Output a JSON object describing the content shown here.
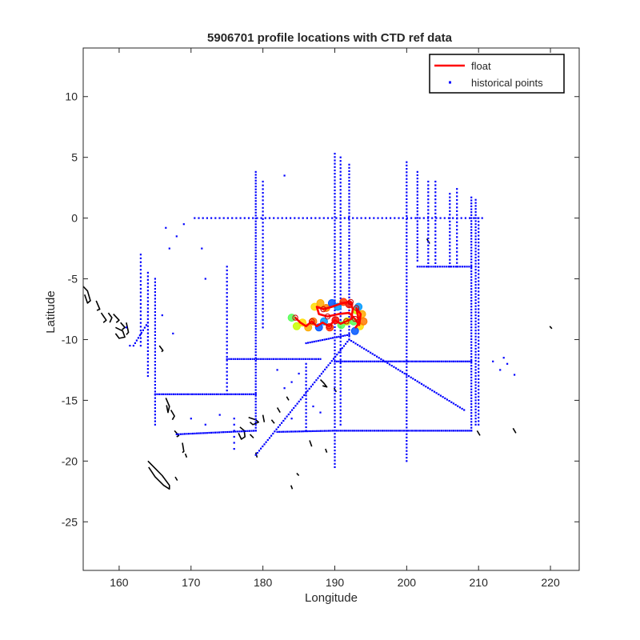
{
  "chart_data": {
    "type": "scatter",
    "title": "5906701 profile locations with CTD ref data",
    "xlabel": "Longitude",
    "ylabel": "Latitude",
    "xlim": [
      155,
      224
    ],
    "ylim": [
      -29,
      14
    ],
    "xticks": [
      160,
      170,
      180,
      190,
      200,
      210,
      220
    ],
    "yticks": [
      10,
      5,
      0,
      -5,
      -10,
      -15,
      -20,
      -25
    ],
    "grid": false,
    "legend": {
      "position": "top-right",
      "entries": [
        {
          "label": "float",
          "color": "#ff0000",
          "marker": "line"
        },
        {
          "label": "historical points",
          "color": "#0000ff",
          "marker": "dot"
        }
      ]
    },
    "series": [
      {
        "name": "float",
        "color": "#ff0000",
        "points": [
          [
            184.5,
            -8.2
          ],
          [
            185.2,
            -8.6
          ],
          [
            186.0,
            -8.9
          ],
          [
            186.8,
            -8.5
          ],
          [
            187.5,
            -8.9
          ],
          [
            188.3,
            -8.6
          ],
          [
            189.2,
            -8.9
          ],
          [
            190.0,
            -8.4
          ],
          [
            190.8,
            -8.7
          ],
          [
            191.6,
            -8.5
          ],
          [
            192.3,
            -8.3
          ],
          [
            192.5,
            -7.5
          ],
          [
            192.2,
            -6.9
          ],
          [
            191.0,
            -7.0
          ],
          [
            189.6,
            -7.3
          ],
          [
            188.4,
            -7.5
          ],
          [
            187.5,
            -7.3
          ],
          [
            187.8,
            -7.9
          ],
          [
            189.0,
            -8.1
          ],
          [
            190.5,
            -7.9
          ],
          [
            192.0,
            -7.8
          ],
          [
            192.8,
            -8.3
          ],
          [
            193.4,
            -8.8
          ],
          [
            193.6,
            -7.9
          ],
          [
            193.0,
            -7.4
          ],
          [
            193.4,
            -8.6
          ],
          [
            192.9,
            -9.0
          ]
        ]
      },
      {
        "name": "historical points",
        "color": "#0000ff",
        "segments": [
          {
            "from": [
              170.5,
              0
            ],
            "to": [
              210.5,
              0
            ],
            "n": 70
          },
          {
            "from": [
              179,
              3.8
            ],
            "to": [
              179,
              -17.5
            ],
            "n": 90
          },
          {
            "from": [
              180,
              3
            ],
            "to": [
              180,
              -9
            ],
            "n": 40
          },
          {
            "from": [
              190,
              5.3
            ],
            "to": [
              190,
              -20.5
            ],
            "n": 95
          },
          {
            "from": [
              190.8,
              5
            ],
            "to": [
              190.8,
              -17
            ],
            "n": 75
          },
          {
            "from": [
              192,
              4.4
            ],
            "to": [
              192,
              -10
            ],
            "n": 55
          },
          {
            "from": [
              200,
              4.6
            ],
            "to": [
              200,
              -20
            ],
            "n": 90
          },
          {
            "from": [
              201.5,
              3.8
            ],
            "to": [
              201.5,
              -3.5
            ],
            "n": 28
          },
          {
            "from": [
              203,
              3
            ],
            "to": [
              203,
              -4
            ],
            "n": 25
          },
          {
            "from": [
              204,
              3
            ],
            "to": [
              204,
              -4
            ],
            "n": 25
          },
          {
            "from": [
              206,
              2
            ],
            "to": [
              206,
              -4
            ],
            "n": 22
          },
          {
            "from": [
              207,
              2.4
            ],
            "to": [
              207,
              -4
            ],
            "n": 22
          },
          {
            "from": [
              209,
              1.7
            ],
            "to": [
              209,
              -17.5
            ],
            "n": 80
          },
          {
            "from": [
              209.6,
              1.5
            ],
            "to": [
              209.6,
              -17
            ],
            "n": 75
          },
          {
            "from": [
              210,
              0
            ],
            "to": [
              210,
              -17
            ],
            "n": 60
          },
          {
            "from": [
              201.5,
              -4
            ],
            "to": [
              209,
              -4
            ],
            "n": 25
          },
          {
            "from": [
              190,
              -11.8
            ],
            "to": [
              209,
              -11.8
            ],
            "n": 70
          },
          {
            "from": [
              190,
              -17.5
            ],
            "to": [
              209,
              -17.5
            ],
            "n": 70
          },
          {
            "from": [
              175,
              -11.6
            ],
            "to": [
              188,
              -11.6
            ],
            "n": 45
          },
          {
            "from": [
              165,
              -14.5
            ],
            "to": [
              179,
              -14.5
            ],
            "n": 50
          },
          {
            "from": [
              168,
              -17.8
            ],
            "to": [
              179,
              -17.5
            ],
            "n": 40
          },
          {
            "from": [
              182,
              -17.6
            ],
            "to": [
              190,
              -17.5
            ],
            "n": 30
          },
          {
            "from": [
              186,
              -10.3
            ],
            "to": [
              192,
              -9.6
            ],
            "n": 22
          },
          {
            "from": [
              192,
              -10
            ],
            "to": [
              208,
              -15.8
            ],
            "n": 55
          },
          {
            "from": [
              192,
              -10
            ],
            "to": [
              179,
              -19.5
            ],
            "n": 55
          },
          {
            "from": [
              165,
              -5
            ],
            "to": [
              165,
              -17
            ],
            "n": 45
          },
          {
            "from": [
              164,
              -4.5
            ],
            "to": [
              164,
              -13
            ],
            "n": 30
          },
          {
            "from": [
              163,
              -3
            ],
            "to": [
              163,
              -10.5
            ],
            "n": 25
          },
          {
            "from": [
              162,
              -10.5
            ],
            "to": [
              164,
              -8.6
            ],
            "n": 10
          },
          {
            "from": [
              175,
              -4
            ],
            "to": [
              175,
              -14.5
            ],
            "n": 35
          },
          {
            "from": [
              186,
              -12
            ],
            "to": [
              186,
              -17.5
            ],
            "n": 20
          },
          {
            "from": [
              176,
              -16.5
            ],
            "to": [
              176,
              -19
            ],
            "n": 6
          }
        ],
        "scatter": [
          [
            166.5,
            -0.8
          ],
          [
            167,
            -2.5
          ],
          [
            168,
            -1.5
          ],
          [
            169,
            -0.5
          ],
          [
            161.5,
            -10.5
          ],
          [
            161,
            -9
          ],
          [
            166,
            -8
          ],
          [
            167.5,
            -9.5
          ],
          [
            170,
            -16.5
          ],
          [
            172,
            -17
          ],
          [
            174,
            -16.2
          ],
          [
            182,
            -12.5
          ],
          [
            183,
            -14
          ],
          [
            184,
            -13.5
          ],
          [
            185,
            -12.8
          ],
          [
            187,
            -15.5
          ],
          [
            188,
            -16
          ],
          [
            184,
            -16.5
          ],
          [
            183,
            3.5
          ],
          [
            171.5,
            -2.5
          ],
          [
            172,
            -5
          ],
          [
            213,
            -12.5
          ],
          [
            214,
            -12
          ],
          [
            213.5,
            -11.5
          ],
          [
            215,
            -12.9
          ],
          [
            212,
            -11.8
          ]
        ]
      }
    ],
    "coastlines": [
      [
        [
          154.8,
          -5.5
        ],
        [
          155.6,
          -6.0
        ],
        [
          156.0,
          -6.8
        ],
        [
          155.6,
          -7.0
        ],
        [
          155.2,
          -6.3
        ]
      ],
      [
        [
          156.8,
          -6.8
        ],
        [
          157.3,
          -7.5
        ],
        [
          156.9,
          -7.6
        ]
      ],
      [
        [
          157.5,
          -7.8
        ],
        [
          158.2,
          -8.4
        ],
        [
          157.8,
          -8.6
        ]
      ],
      [
        [
          158.5,
          -7.8
        ],
        [
          159.0,
          -8.2
        ],
        [
          158.7,
          -8.6
        ]
      ],
      [
        [
          159.2,
          -7.9
        ],
        [
          160.0,
          -8.4
        ],
        [
          159.6,
          -8.6
        ]
      ],
      [
        [
          159.5,
          -9.0
        ],
        [
          160.5,
          -9.3
        ],
        [
          160.8,
          -9.8
        ],
        [
          160.0,
          -9.9
        ],
        [
          159.5,
          -9.5
        ]
      ],
      [
        [
          160.2,
          -8.6
        ],
        [
          160.8,
          -9.0
        ],
        [
          160.4,
          -9.2
        ]
      ],
      [
        [
          161.0,
          -8.6
        ],
        [
          161.3,
          -9.4
        ],
        [
          161.0,
          -9.6
        ]
      ],
      [
        [
          165.6,
          -10.5
        ],
        [
          166.1,
          -10.9
        ],
        [
          165.9,
          -11.0
        ]
      ],
      [
        [
          166.5,
          -14.8
        ],
        [
          167.0,
          -15.5
        ],
        [
          166.8,
          -16.0
        ],
        [
          166.6,
          -15.4
        ]
      ],
      [
        [
          167.2,
          -15.8
        ],
        [
          167.7,
          -16.3
        ],
        [
          167.4,
          -16.6
        ]
      ],
      [
        [
          167.7,
          -17.5
        ],
        [
          168.3,
          -17.9
        ],
        [
          168.0,
          -18.0
        ]
      ],
      [
        [
          168.8,
          -18.5
        ],
        [
          169.0,
          -19.2
        ],
        [
          168.8,
          -19.3
        ]
      ],
      [
        [
          169.2,
          -19.4
        ],
        [
          169.4,
          -19.7
        ]
      ],
      [
        [
          164.0,
          -20.0
        ],
        [
          165.0,
          -20.6
        ],
        [
          166.0,
          -21.2
        ],
        [
          167.0,
          -22.0
        ],
        [
          167.0,
          -22.3
        ],
        [
          166.2,
          -22.0
        ],
        [
          165.0,
          -21.3
        ],
        [
          164.1,
          -20.5
        ]
      ],
      [
        [
          167.8,
          -21.3
        ],
        [
          168.1,
          -21.6
        ]
      ],
      [
        [
          176.8,
          -17.2
        ],
        [
          177.4,
          -17.5
        ],
        [
          177.5,
          -18.0
        ],
        [
          177.0,
          -18.2
        ],
        [
          176.6,
          -17.7
        ]
      ],
      [
        [
          178.0,
          -16.4
        ],
        [
          179.0,
          -16.6
        ],
        [
          179.4,
          -16.8
        ],
        [
          178.6,
          -17.0
        ],
        [
          178.2,
          -16.8
        ]
      ],
      [
        [
          178.2,
          -17.8
        ],
        [
          178.7,
          -18.1
        ]
      ],
      [
        [
          180.0,
          -16.2
        ],
        [
          180.2,
          -16.8
        ]
      ],
      [
        [
          179.0,
          -19.3
        ],
        [
          179.2,
          -19.7
        ]
      ],
      [
        [
          181.2,
          -16.6
        ],
        [
          181.6,
          -16.9
        ]
      ],
      [
        [
          182.0,
          -15.6
        ],
        [
          182.4,
          -16.0
        ]
      ],
      [
        [
          183.3,
          -14.7
        ],
        [
          183.6,
          -15.0
        ]
      ],
      [
        [
          186.5,
          -18.3
        ],
        [
          186.8,
          -18.8
        ]
      ],
      [
        [
          188.0,
          -13.3
        ],
        [
          188.5,
          -13.6
        ],
        [
          188.9,
          -13.9
        ],
        [
          188.3,
          -13.8
        ]
      ],
      [
        [
          189.9,
          -14.0
        ],
        [
          190.2,
          -14.3
        ]
      ],
      [
        [
          188.7,
          -19.0
        ],
        [
          188.9,
          -19.3
        ]
      ],
      [
        [
          184.7,
          -21.0
        ],
        [
          185.0,
          -21.2
        ]
      ],
      [
        [
          183.9,
          -22.0
        ],
        [
          184.1,
          -22.3
        ]
      ],
      [
        [
          202.8,
          -1.7
        ],
        [
          203.2,
          -2.1
        ]
      ],
      [
        [
          209.8,
          -17.5
        ],
        [
          210.2,
          -17.9
        ]
      ],
      [
        [
          214.8,
          -17.3
        ],
        [
          215.2,
          -17.7
        ]
      ],
      [
        [
          219.9,
          -8.9
        ],
        [
          220.2,
          -9.1
        ]
      ]
    ],
    "float_markers": {
      "colors": [
        "#55ff55",
        "#c8ff00",
        "#ffdd00",
        "#ffaa00",
        "#ff7a00",
        "#0055ff",
        "#0099ff",
        "#ff3300",
        "#ee1100"
      ],
      "points": [
        [
          184.0,
          -8.2
        ],
        [
          184.7,
          -8.9
        ],
        [
          185.5,
          -8.6
        ],
        [
          186.3,
          -9.0
        ],
        [
          187.0,
          -8.5
        ],
        [
          187.8,
          -9.0
        ],
        [
          188.5,
          -8.5
        ],
        [
          189.3,
          -9.0
        ],
        [
          190.1,
          -8.4
        ],
        [
          190.9,
          -8.8
        ],
        [
          191.7,
          -8.5
        ],
        [
          187.2,
          -7.3
        ],
        [
          188.0,
          -7.0
        ],
        [
          188.8,
          -7.4
        ],
        [
          189.6,
          -7.0
        ],
        [
          190.4,
          -7.3
        ],
        [
          191.2,
          -6.9
        ],
        [
          192.0,
          -7.1
        ],
        [
          192.6,
          -8.5
        ],
        [
          193.0,
          -7.6
        ],
        [
          193.5,
          -8.9
        ],
        [
          193.8,
          -7.9
        ],
        [
          194.0,
          -8.5
        ],
        [
          192.8,
          -9.3
        ],
        [
          193.3,
          -7.3
        ]
      ]
    }
  }
}
